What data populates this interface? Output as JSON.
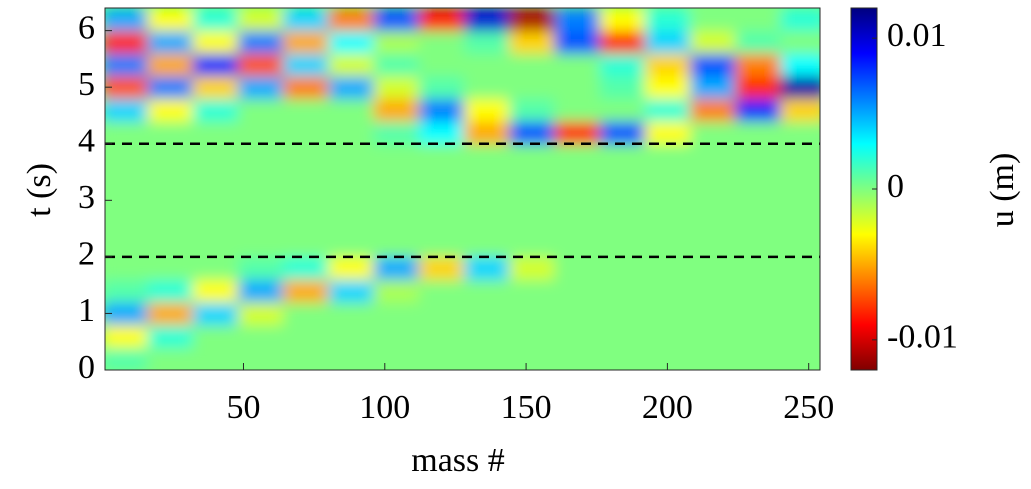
{
  "chart_data": {
    "type": "heatmap",
    "x_label": "mass #",
    "y_label": "t (s)",
    "colorbar_label": "u (m)",
    "xlim": [
      1,
      254
    ],
    "ylim": [
      0,
      6.4
    ],
    "xticks": [
      50,
      100,
      150,
      200,
      250
    ],
    "yticks": [
      0,
      1,
      2,
      3,
      4,
      5,
      6
    ],
    "colormap": "jet",
    "colormap_reversed": true,
    "clim": [
      -0.012,
      0.012
    ],
    "cticks": [
      -0.01,
      0,
      0.01
    ],
    "hlines": [
      2,
      4
    ],
    "x_edges": [
      0,
      16,
      32,
      48,
      64,
      80,
      96,
      112,
      128,
      144,
      160,
      176,
      192,
      208,
      224,
      240,
      256
    ],
    "y_edges": [
      0,
      0.4,
      0.8,
      1.2,
      1.6,
      2.0,
      2.4,
      2.8,
      3.2,
      3.6,
      4.0,
      4.4,
      4.8,
      5.2,
      5.6,
      6.0,
      6.4
    ],
    "z": [
      [
        0.001,
        0,
        0,
        0,
        0,
        0,
        0,
        0,
        0,
        0,
        0,
        0,
        0,
        0,
        0,
        0
      ],
      [
        -0.003,
        0.002,
        0,
        0,
        0,
        0,
        0,
        0,
        0,
        0,
        0,
        0,
        0,
        0,
        0,
        0
      ],
      [
        0.005,
        -0.005,
        0.004,
        -0.002,
        0,
        0,
        0,
        0,
        0,
        0,
        0,
        0,
        0,
        0,
        0,
        0
      ],
      [
        0.001,
        0.002,
        -0.003,
        0.005,
        -0.005,
        0.004,
        -0.001,
        0,
        0,
        0,
        0,
        0,
        0,
        0,
        0,
        0
      ],
      [
        0,
        0,
        0,
        0.001,
        0.002,
        -0.003,
        0.005,
        -0.004,
        0.004,
        -0.002,
        0,
        0,
        0,
        0,
        0,
        0
      ],
      [
        0,
        0,
        0,
        0,
        0,
        0,
        0,
        0,
        0,
        0,
        0,
        0,
        0,
        0,
        0,
        0
      ],
      [
        0,
        0,
        0,
        0,
        0,
        0,
        0,
        0,
        0,
        0,
        0,
        0,
        0,
        0,
        0,
        0
      ],
      [
        0,
        0,
        0,
        0,
        0,
        0,
        0,
        0,
        0,
        0,
        0,
        0,
        0,
        0,
        0,
        0
      ],
      [
        0,
        0,
        0,
        0,
        0,
        0,
        0,
        0,
        0,
        0,
        0,
        0,
        0,
        0,
        0,
        0
      ],
      [
        0,
        0,
        0,
        0,
        0,
        0,
        0,
        0,
        0,
        0,
        0,
        0,
        0,
        0,
        0,
        0
      ],
      [
        0,
        0,
        0,
        0,
        0,
        0,
        0.001,
        0.003,
        -0.005,
        0.007,
        -0.008,
        0.007,
        -0.003,
        0,
        0,
        0
      ],
      [
        0.004,
        -0.003,
        0.002,
        0,
        0,
        0,
        -0.005,
        0.006,
        -0.003,
        0.001,
        0,
        0,
        0.002,
        -0.006,
        0.008,
        -0.004
      ],
      [
        -0.007,
        0.006,
        -0.004,
        0.005,
        -0.006,
        0.005,
        -0.002,
        0.001,
        0,
        0,
        0,
        0.001,
        -0.003,
        0.005,
        -0.008,
        0.011
      ],
      [
        0.006,
        -0.005,
        0.008,
        -0.007,
        0.004,
        -0.002,
        0.001,
        0,
        0,
        0,
        0,
        0.002,
        -0.004,
        0.007,
        -0.006,
        0.003
      ],
      [
        -0.008,
        0.005,
        -0.003,
        0.006,
        -0.005,
        0.003,
        -0.001,
        0,
        0.001,
        -0.004,
        0.007,
        -0.008,
        0.004,
        -0.002,
        0.001,
        0
      ],
      [
        0.005,
        -0.003,
        0.002,
        -0.002,
        0.004,
        -0.006,
        0.007,
        -0.009,
        0.01,
        -0.011,
        0.006,
        -0.003,
        0.002,
        0,
        0,
        0.002
      ]
    ]
  }
}
